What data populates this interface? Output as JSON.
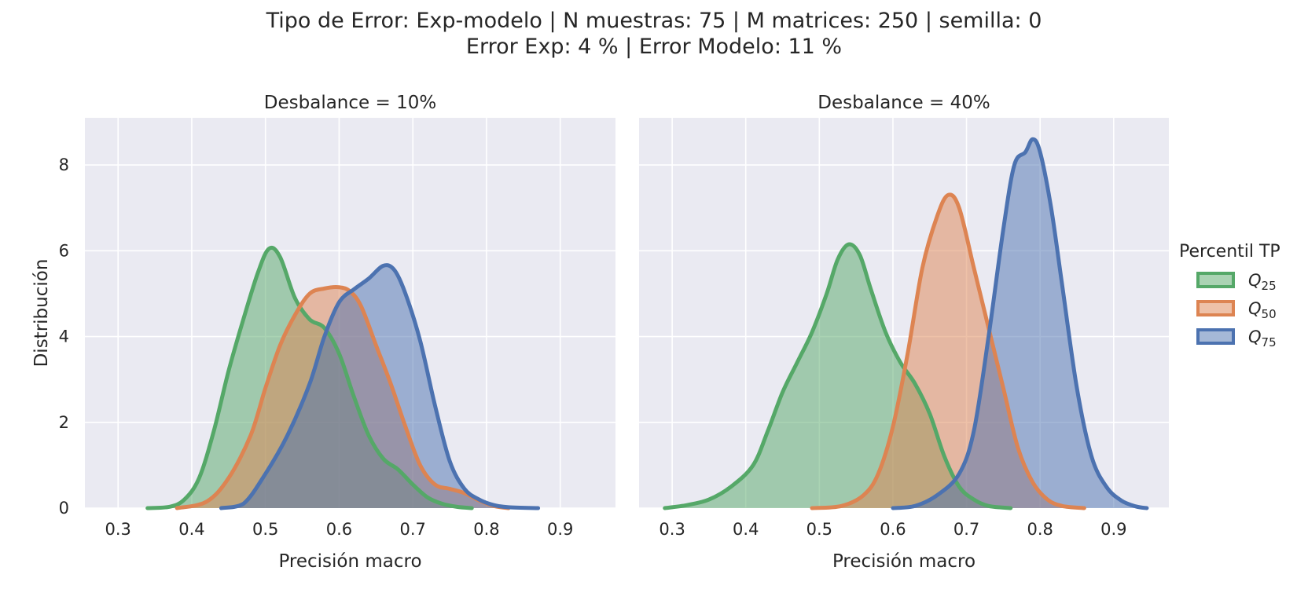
{
  "figure": {
    "title_lines": [
      "Tipo de Error: Exp-modelo | N muestras: 75 | M matrices: 250 | semilla: 0",
      "Error Exp: 4 % | Error Modelo: 11 %"
    ],
    "background": "#ffffff",
    "panel_background": "#eaeaf2",
    "grid_color": "#ffffff"
  },
  "legend": {
    "title": "Percentil TP",
    "placement": "right",
    "items": [
      {
        "label": "Q",
        "subscript": "25",
        "color": "#55a868"
      },
      {
        "label": "Q",
        "subscript": "50",
        "color": "#dd8452"
      },
      {
        "label": "Q",
        "subscript": "75",
        "color": "#4c72b0"
      }
    ]
  },
  "chart_data": [
    {
      "type": "area",
      "title": "Desbalance = 10%",
      "xlabel": "Precisión macro",
      "ylabel": "Distribución",
      "xlim": [
        0.255,
        0.975
      ],
      "ylim": [
        0,
        9.1
      ],
      "xticks": [
        0.3,
        0.4,
        0.5,
        0.6,
        0.7,
        0.8,
        0.9
      ],
      "xtick_labels": [
        "0.3",
        "0.4",
        "0.5",
        "0.6",
        "0.7",
        "0.8",
        "0.9"
      ],
      "yticks": [
        0,
        2,
        4,
        6,
        8
      ],
      "ytick_labels": [
        "0",
        "2",
        "4",
        "6",
        "8"
      ],
      "grid": true,
      "series": [
        {
          "name": "Q25",
          "color": "#55a868",
          "points": [
            [
              0.34,
              0
            ],
            [
              0.37,
              0.03
            ],
            [
              0.39,
              0.2
            ],
            [
              0.41,
              0.7
            ],
            [
              0.43,
              1.8
            ],
            [
              0.45,
              3.2
            ],
            [
              0.47,
              4.4
            ],
            [
              0.49,
              5.5
            ],
            [
              0.505,
              6.05
            ],
            [
              0.52,
              5.85
            ],
            [
              0.54,
              4.9
            ],
            [
              0.56,
              4.4
            ],
            [
              0.58,
              4.2
            ],
            [
              0.6,
              3.6
            ],
            [
              0.62,
              2.6
            ],
            [
              0.64,
              1.7
            ],
            [
              0.66,
              1.15
            ],
            [
              0.68,
              0.9
            ],
            [
              0.7,
              0.55
            ],
            [
              0.72,
              0.25
            ],
            [
              0.74,
              0.1
            ],
            [
              0.76,
              0.03
            ],
            [
              0.78,
              0
            ]
          ]
        },
        {
          "name": "Q50",
          "color": "#dd8452",
          "points": [
            [
              0.38,
              0
            ],
            [
              0.42,
              0.15
            ],
            [
              0.45,
              0.7
            ],
            [
              0.48,
              1.7
            ],
            [
              0.5,
              2.8
            ],
            [
              0.52,
              3.8
            ],
            [
              0.54,
              4.5
            ],
            [
              0.56,
              5.0
            ],
            [
              0.58,
              5.12
            ],
            [
              0.6,
              5.15
            ],
            [
              0.615,
              5.05
            ],
            [
              0.63,
              4.7
            ],
            [
              0.65,
              3.8
            ],
            [
              0.67,
              2.9
            ],
            [
              0.69,
              1.9
            ],
            [
              0.71,
              1.0
            ],
            [
              0.73,
              0.55
            ],
            [
              0.75,
              0.45
            ],
            [
              0.77,
              0.35
            ],
            [
              0.79,
              0.18
            ],
            [
              0.81,
              0.05
            ],
            [
              0.83,
              0
            ]
          ]
        },
        {
          "name": "Q75",
          "color": "#4c72b0",
          "points": [
            [
              0.44,
              0
            ],
            [
              0.47,
              0.1
            ],
            [
              0.5,
              0.8
            ],
            [
              0.53,
              1.7
            ],
            [
              0.56,
              2.9
            ],
            [
              0.58,
              4.0
            ],
            [
              0.6,
              4.8
            ],
            [
              0.62,
              5.1
            ],
            [
              0.64,
              5.35
            ],
            [
              0.66,
              5.65
            ],
            [
              0.675,
              5.55
            ],
            [
              0.69,
              5.0
            ],
            [
              0.71,
              3.9
            ],
            [
              0.73,
              2.4
            ],
            [
              0.75,
              1.1
            ],
            [
              0.77,
              0.45
            ],
            [
              0.79,
              0.2
            ],
            [
              0.81,
              0.07
            ],
            [
              0.83,
              0.02
            ],
            [
              0.87,
              0
            ]
          ]
        }
      ]
    },
    {
      "type": "area",
      "title": "Desbalance = 40%",
      "xlabel": "Precisión macro",
      "ylabel": "",
      "xlim": [
        0.255,
        0.975
      ],
      "ylim": [
        0,
        9.1
      ],
      "xticks": [
        0.3,
        0.4,
        0.5,
        0.6,
        0.7,
        0.8,
        0.9
      ],
      "xtick_labels": [
        "0.3",
        "0.4",
        "0.5",
        "0.6",
        "0.7",
        "0.8",
        "0.9"
      ],
      "yticks": [
        0,
        2,
        4,
        6,
        8
      ],
      "ytick_labels": [
        "",
        "",
        "",
        "",
        ""
      ],
      "grid": true,
      "series": [
        {
          "name": "Q25",
          "color": "#55a868",
          "points": [
            [
              0.29,
              0
            ],
            [
              0.32,
              0.07
            ],
            [
              0.35,
              0.2
            ],
            [
              0.38,
              0.5
            ],
            [
              0.41,
              1.0
            ],
            [
              0.43,
              1.8
            ],
            [
              0.45,
              2.7
            ],
            [
              0.47,
              3.4
            ],
            [
              0.49,
              4.1
            ],
            [
              0.51,
              5.0
            ],
            [
              0.525,
              5.8
            ],
            [
              0.54,
              6.15
            ],
            [
              0.555,
              5.9
            ],
            [
              0.57,
              5.1
            ],
            [
              0.59,
              4.1
            ],
            [
              0.61,
              3.4
            ],
            [
              0.63,
              2.9
            ],
            [
              0.65,
              2.2
            ],
            [
              0.67,
              1.2
            ],
            [
              0.69,
              0.5
            ],
            [
              0.71,
              0.2
            ],
            [
              0.73,
              0.05
            ],
            [
              0.76,
              0
            ]
          ]
        },
        {
          "name": "Q50",
          "color": "#dd8452",
          "points": [
            [
              0.49,
              0
            ],
            [
              0.53,
              0.05
            ],
            [
              0.56,
              0.3
            ],
            [
              0.58,
              0.8
            ],
            [
              0.6,
              1.9
            ],
            [
              0.62,
              3.6
            ],
            [
              0.64,
              5.6
            ],
            [
              0.66,
              6.8
            ],
            [
              0.675,
              7.3
            ],
            [
              0.69,
              7.0
            ],
            [
              0.71,
              5.6
            ],
            [
              0.73,
              4.2
            ],
            [
              0.75,
              2.8
            ],
            [
              0.77,
              1.4
            ],
            [
              0.79,
              0.6
            ],
            [
              0.81,
              0.2
            ],
            [
              0.83,
              0.05
            ],
            [
              0.86,
              0
            ]
          ]
        },
        {
          "name": "Q75",
          "color": "#4c72b0",
          "points": [
            [
              0.6,
              0
            ],
            [
              0.63,
              0.05
            ],
            [
              0.66,
              0.3
            ],
            [
              0.69,
              0.8
            ],
            [
              0.71,
              1.8
            ],
            [
              0.73,
              4.0
            ],
            [
              0.75,
              6.5
            ],
            [
              0.765,
              8.0
            ],
            [
              0.78,
              8.3
            ],
            [
              0.79,
              8.6
            ],
            [
              0.8,
              8.3
            ],
            [
              0.815,
              7.0
            ],
            [
              0.83,
              5.2
            ],
            [
              0.85,
              2.8
            ],
            [
              0.87,
              1.2
            ],
            [
              0.89,
              0.5
            ],
            [
              0.91,
              0.18
            ],
            [
              0.93,
              0.04
            ],
            [
              0.945,
              0
            ]
          ]
        }
      ]
    }
  ]
}
